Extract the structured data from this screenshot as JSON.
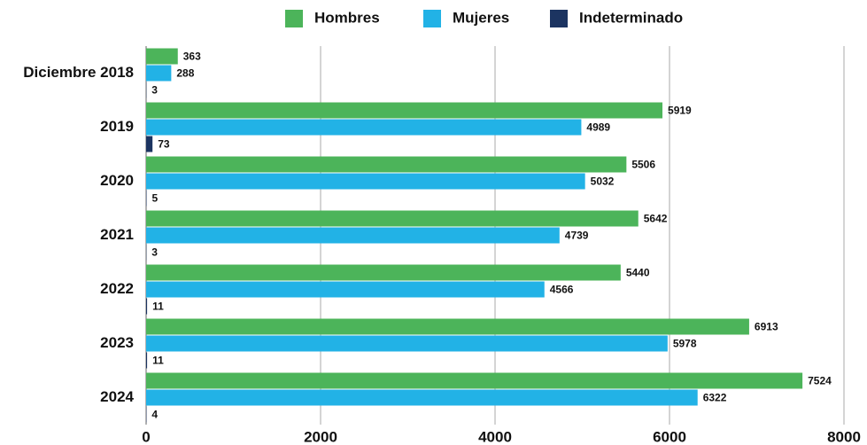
{
  "chart_data": {
    "type": "hbar",
    "categories": [
      "Diciembre 2018",
      "2019",
      "2020",
      "2021",
      "2022",
      "2023",
      "2024"
    ],
    "series": [
      {
        "name": "Hombres",
        "color": "#4cb45a",
        "values": [
          363,
          5919,
          5506,
          5642,
          5440,
          6913,
          7524
        ]
      },
      {
        "name": "Mujeres",
        "color": "#22b2e6",
        "values": [
          288,
          4989,
          5032,
          4739,
          4566,
          5978,
          6322
        ]
      },
      {
        "name": "Indeterminado",
        "color": "#1c3461",
        "values": [
          3,
          73,
          5,
          3,
          11,
          11,
          4
        ]
      }
    ],
    "xlim": [
      0,
      8000
    ],
    "xticks": [
      0,
      2000,
      4000,
      6000,
      8000
    ],
    "grid": true,
    "legend": "top"
  }
}
